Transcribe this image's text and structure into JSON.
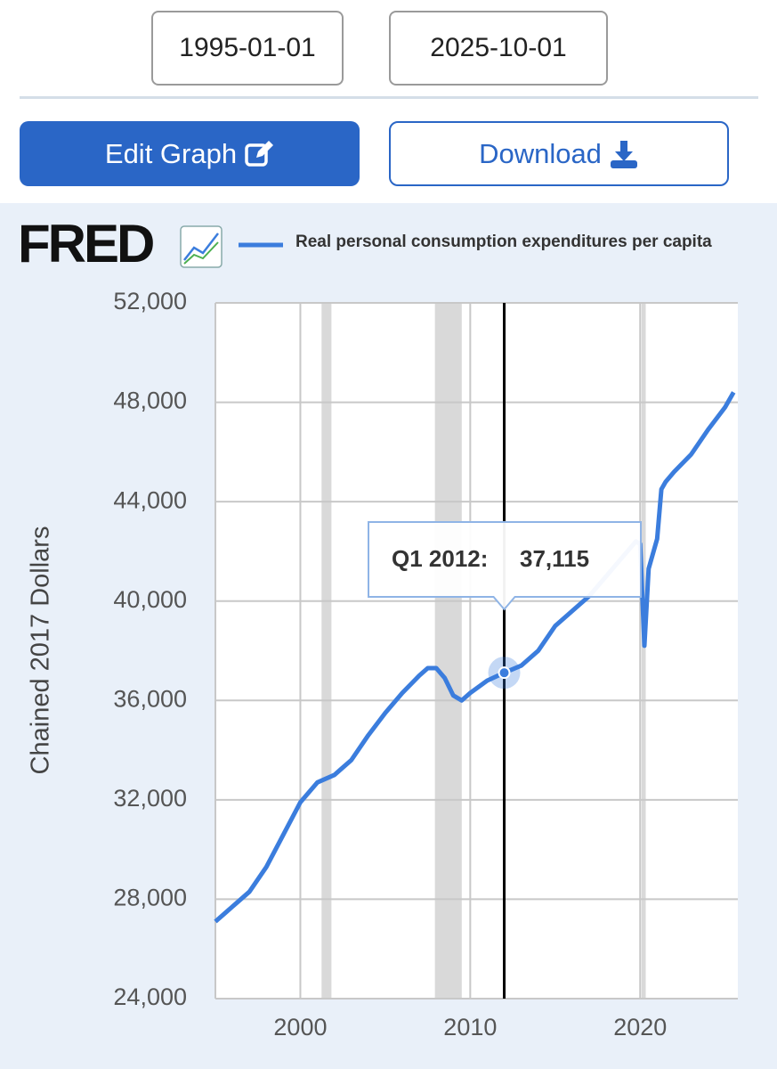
{
  "date_range": {
    "start": "1995-01-01",
    "end": "2025-10-01"
  },
  "buttons": {
    "edit": "Edit Graph",
    "download": "Download"
  },
  "chart_data": {
    "type": "line",
    "logo": "FRED",
    "y_label": "Chained 2017 Dollars",
    "x": [
      1995,
      1996,
      1997,
      1998,
      1999,
      2000,
      2001,
      2002,
      2003,
      2004,
      2005,
      2006,
      2007,
      2007.5,
      2008,
      2008.5,
      2009,
      2009.5,
      2010,
      2011,
      2012,
      2013,
      2014,
      2015,
      2016,
      2017,
      2018,
      2019,
      2019.75,
      2020,
      2020.25,
      2020.5,
      2021,
      2021.25,
      2021.5,
      2022,
      2023,
      2024,
      2025,
      2025.5
    ],
    "series": [
      {
        "name": "Real personal consumption expenditures per capita",
        "color": "#3b7ddd",
        "values": [
          27100,
          27700,
          28300,
          29300,
          30600,
          31900,
          32700,
          33000,
          33600,
          34600,
          35500,
          36300,
          37000,
          37300,
          37300,
          36900,
          36200,
          36000,
          36300,
          36800,
          37115,
          37400,
          38000,
          39000,
          39600,
          40200,
          41000,
          41800,
          42400,
          42300,
          38200,
          41300,
          42500,
          44500,
          44800,
          45200,
          45900,
          46900,
          47800,
          48400
        ]
      }
    ],
    "recessions": [
      [
        2001.25,
        2001.83
      ],
      [
        2007.92,
        2009.5
      ],
      [
        2020.08,
        2020.33
      ]
    ],
    "xlim": [
      1995,
      2025.75
    ],
    "xticks": [
      2000,
      2010,
      2020
    ],
    "ylim": [
      24000,
      52000
    ],
    "yticks": [
      {
        "value": 24000,
        "label": "24,000"
      },
      {
        "value": 28000,
        "label": "28,000"
      },
      {
        "value": 32000,
        "label": "32,000"
      },
      {
        "value": 36000,
        "label": "36,000"
      },
      {
        "value": 40000,
        "label": "40,000"
      },
      {
        "value": 44000,
        "label": "44,000"
      },
      {
        "value": 48000,
        "label": "48,000"
      },
      {
        "value": 52000,
        "label": "52,000"
      }
    ],
    "grid": true,
    "tooltip": {
      "period": "Q1 2012:",
      "x": 2012,
      "value": 37115,
      "label": "37,115"
    }
  }
}
